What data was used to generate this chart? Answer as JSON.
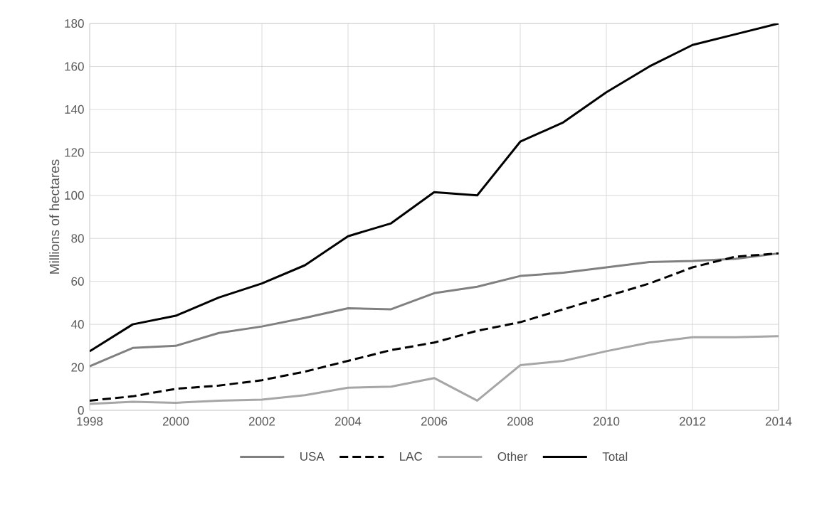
{
  "chart_data": {
    "type": "line",
    "ylabel": "Millions of hectares",
    "x": [
      1998,
      1999,
      2000,
      2001,
      2002,
      2003,
      2004,
      2005,
      2006,
      2007,
      2008,
      2009,
      2010,
      2011,
      2012,
      2013,
      2014
    ],
    "series": [
      {
        "name": "USA",
        "color": "#808080",
        "line_style": "solid",
        "values": [
          20.5,
          29,
          30,
          36,
          39,
          43,
          47.5,
          47,
          54.5,
          57.5,
          62.5,
          64,
          66.5,
          69,
          69.5,
          70.5,
          73
        ]
      },
      {
        "name": "LAC",
        "color": "#000000",
        "line_style": "dashed",
        "values": [
          4.5,
          6.5,
          10,
          11.5,
          14,
          18,
          23,
          28,
          31.5,
          37,
          41,
          47,
          53,
          59,
          66.5,
          71.5,
          73
        ]
      },
      {
        "name": "Other",
        "color": "#a6a6a6",
        "line_style": "solid",
        "values": [
          3,
          4,
          3.5,
          4.5,
          5,
          7,
          10.5,
          11,
          15,
          4.5,
          21,
          23,
          27.5,
          31.5,
          34,
          34,
          34.5
        ]
      },
      {
        "name": "Total",
        "color": "#000000",
        "line_style": "solid",
        "values": [
          27.5,
          40,
          44,
          52.5,
          59,
          67.5,
          81,
          87,
          101.5,
          100,
          125,
          134,
          148,
          160,
          170,
          175,
          180
        ]
      }
    ],
    "xlim": [
      1998,
      2014
    ],
    "xticks": [
      1998,
      2000,
      2002,
      2004,
      2006,
      2008,
      2010,
      2012,
      2014
    ],
    "ylim": [
      0,
      180
    ],
    "yticks": [
      0,
      20,
      40,
      60,
      80,
      100,
      120,
      140,
      160,
      180
    ],
    "grid": true,
    "legend": "bottom"
  }
}
